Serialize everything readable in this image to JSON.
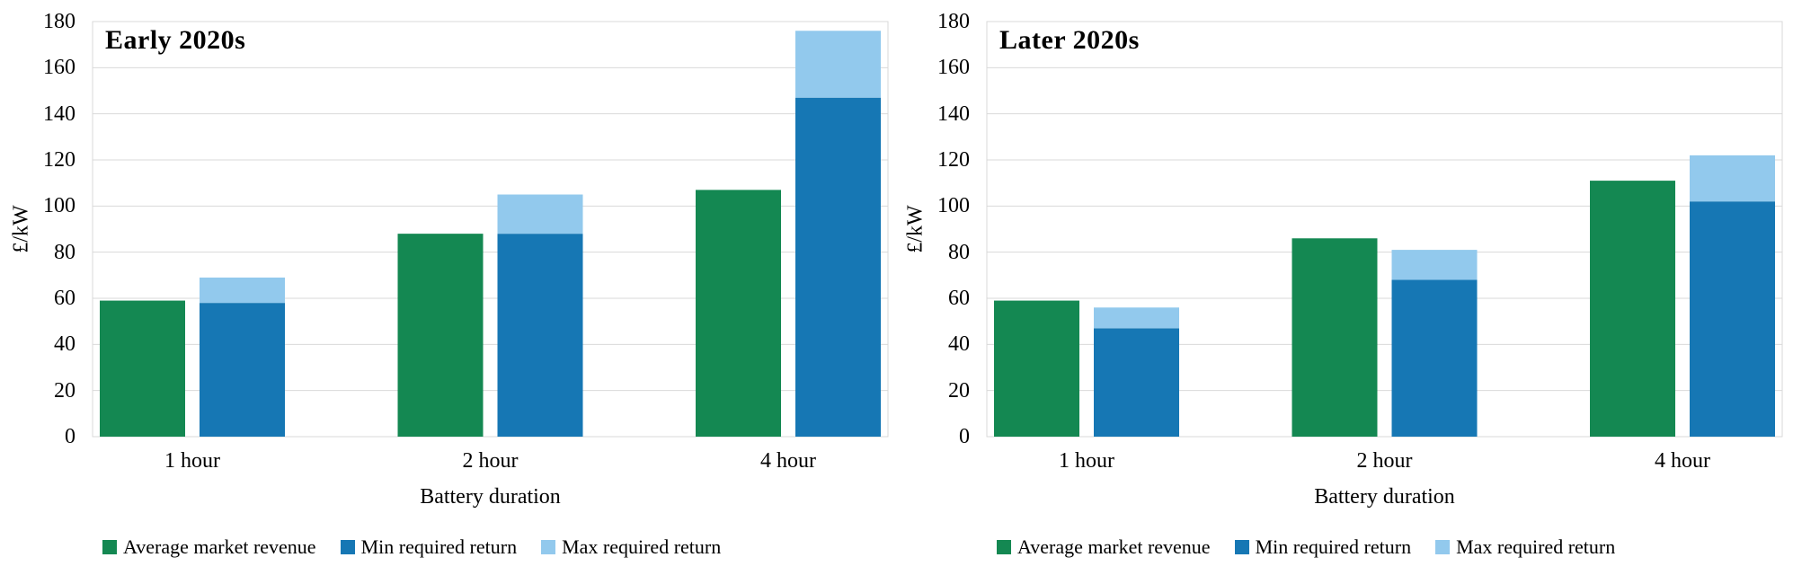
{
  "colors": {
    "green": "#148852",
    "blue": "#1677b4",
    "light_blue": "#92c9ed",
    "grid": "#d9d9d9",
    "text": "#000000",
    "background": "#ffffff"
  },
  "legend": {
    "items": [
      {
        "label": "Average market revenue",
        "color_key": "green"
      },
      {
        "label": "Min required return",
        "color_key": "blue"
      },
      {
        "label": "Max required return",
        "color_key": "light_blue"
      }
    ]
  },
  "chart_data": [
    {
      "type": "bar",
      "title": "Early 2020s",
      "xlabel": "Battery duration",
      "ylabel": "£/kW",
      "categories": [
        "1 hour",
        "2 hour",
        "4 hour"
      ],
      "ylim": [
        0,
        180
      ],
      "ytick_step": 20,
      "grid": true,
      "legend_position": "bottom",
      "series": [
        {
          "name": "Average market revenue",
          "color_key": "green",
          "stack": null,
          "values": [
            59,
            88,
            107
          ]
        },
        {
          "name": "Min required return",
          "color_key": "blue",
          "stack": "required-return",
          "values": [
            58,
            88,
            147
          ]
        },
        {
          "name": "Max required return",
          "color_key": "light_blue",
          "stack": "required-return",
          "values": [
            11,
            17,
            29
          ],
          "stack_top_values": [
            69,
            105,
            176
          ]
        }
      ]
    },
    {
      "type": "bar",
      "title": "Later 2020s",
      "xlabel": "Battery duration",
      "ylabel": "£/kW",
      "categories": [
        "1 hour",
        "2 hour",
        "4 hour"
      ],
      "ylim": [
        0,
        180
      ],
      "ytick_step": 20,
      "grid": true,
      "legend_position": "bottom",
      "series": [
        {
          "name": "Average market revenue",
          "color_key": "green",
          "stack": null,
          "values": [
            59,
            86,
            111
          ]
        },
        {
          "name": "Min required return",
          "color_key": "blue",
          "stack": "required-return",
          "values": [
            47,
            68,
            102
          ]
        },
        {
          "name": "Max required return",
          "color_key": "light_blue",
          "stack": "required-return",
          "values": [
            9,
            13,
            20
          ],
          "stack_top_values": [
            56,
            81,
            122
          ]
        }
      ]
    }
  ]
}
